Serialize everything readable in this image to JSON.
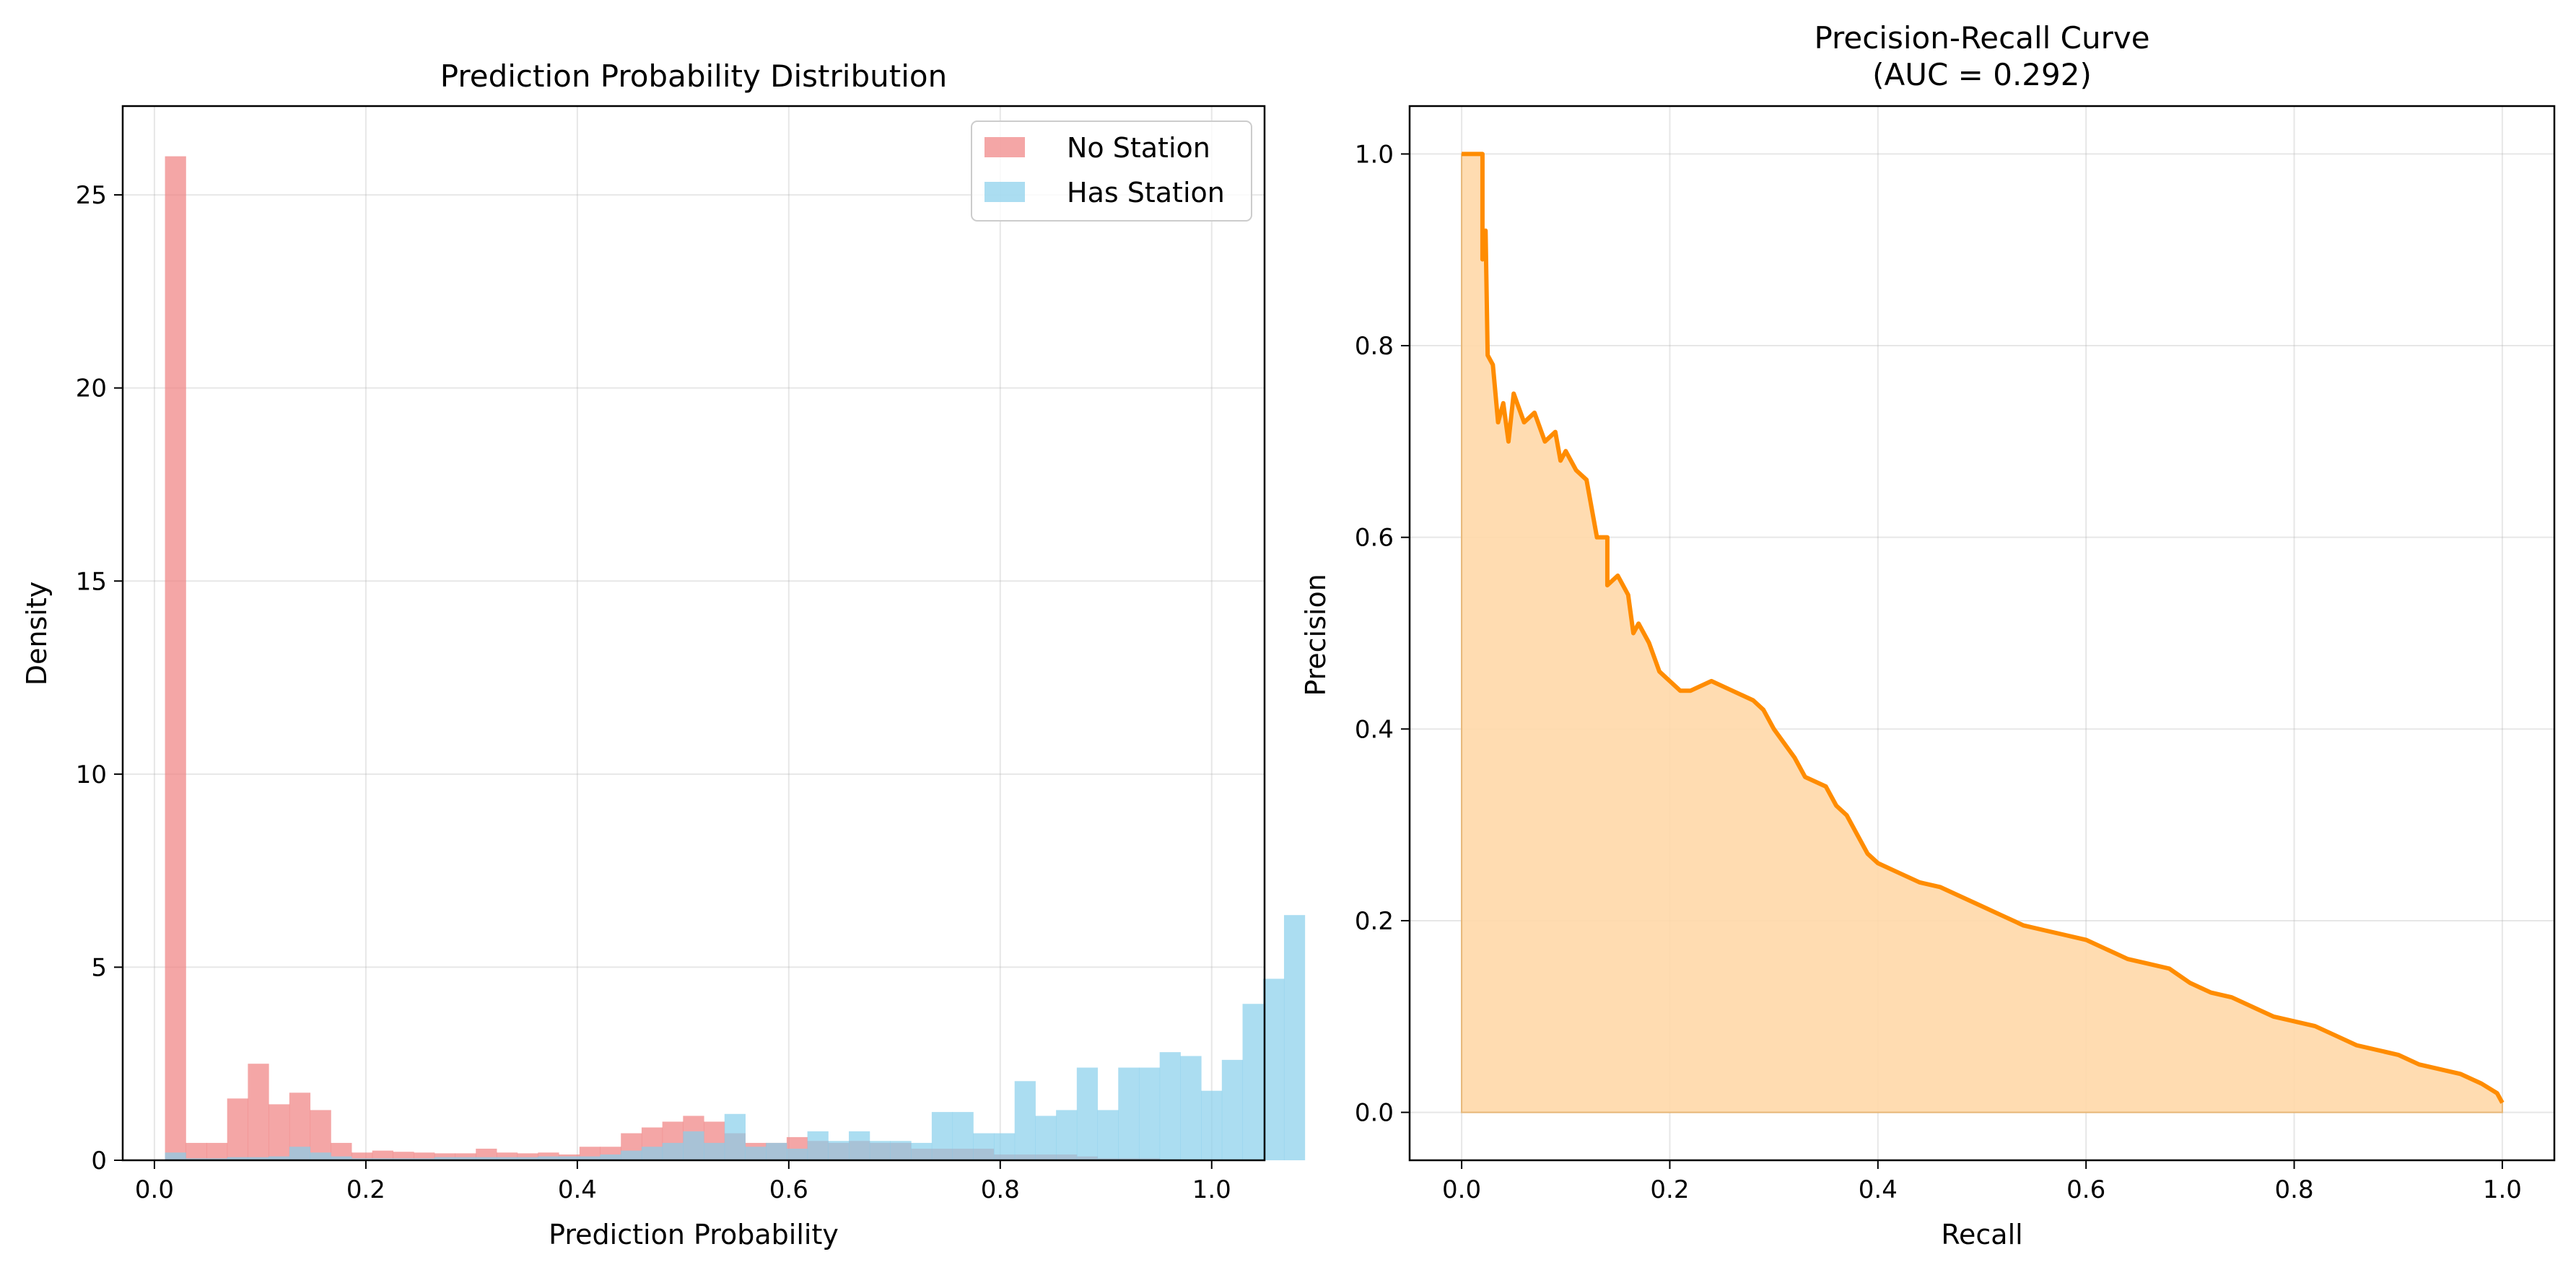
{
  "chart_data": [
    {
      "type": "histogram",
      "title": "Prediction Probability Distribution",
      "xlabel": "Prediction Probability",
      "ylabel": "Density",
      "xlim": [
        -0.03,
        1.05
      ],
      "ylim": [
        0,
        27.3
      ],
      "xticks": [
        0.0,
        0.2,
        0.4,
        0.6,
        0.8,
        1.0
      ],
      "xtick_labels": [
        "0.0",
        "0.2",
        "0.4",
        "0.6",
        "0.8",
        "1.0"
      ],
      "yticks": [
        0,
        5,
        10,
        15,
        20,
        25
      ],
      "ytick_labels": [
        "0",
        "5",
        "10",
        "15",
        "20",
        "25"
      ],
      "grid": true,
      "legend_position": "top-right",
      "series": [
        {
          "name": "No Station",
          "color": "#f08080",
          "bin_start": 0.01,
          "bin_width": 0.0196,
          "values": [
            26.0,
            0.45,
            0.45,
            1.6,
            2.5,
            1.45,
            1.75,
            1.3,
            0.45,
            0.2,
            0.25,
            0.22,
            0.2,
            0.18,
            0.18,
            0.3,
            0.2,
            0.18,
            0.2,
            0.15,
            0.35,
            0.35,
            0.7,
            0.85,
            1.0,
            1.15,
            1.0,
            0.7,
            0.45,
            0.45,
            0.6,
            0.5,
            0.45,
            0.5,
            0.45,
            0.45,
            0.3,
            0.3,
            0.3,
            0.3,
            0.15,
            0.15,
            0.15,
            0.15,
            0.1,
            0.05,
            0.05,
            0.05,
            0.02,
            0.01
          ]
        },
        {
          "name": "Has Station",
          "color": "#87ceeb",
          "bin_start": 0.01,
          "bin_width": 0.0196,
          "values": [
            0.2,
            0.05,
            0.05,
            0.08,
            0.08,
            0.1,
            0.35,
            0.2,
            0.1,
            0.05,
            0.05,
            0.05,
            0.05,
            0.08,
            0.08,
            0.08,
            0.08,
            0.08,
            0.1,
            0.1,
            0.1,
            0.15,
            0.25,
            0.35,
            0.45,
            0.75,
            0.45,
            1.2,
            0.35,
            0.45,
            0.3,
            0.75,
            0.5,
            0.75,
            0.5,
            0.5,
            0.45,
            1.25,
            1.25,
            0.7,
            0.7,
            2.05,
            1.15,
            1.3,
            2.4,
            1.3,
            2.4,
            2.4,
            2.8,
            2.7,
            1.8,
            2.6,
            4.05,
            4.7,
            6.35
          ]
        }
      ]
    },
    {
      "type": "area",
      "title": "Precision-Recall Curve",
      "subtitle": "(AUC = 0.292)",
      "xlabel": "Recall",
      "ylabel": "Precision",
      "xlim": [
        -0.05,
        1.05
      ],
      "ylim": [
        -0.05,
        1.05
      ],
      "xticks": [
        0.0,
        0.2,
        0.4,
        0.6,
        0.8,
        1.0
      ],
      "xtick_labels": [
        "0.0",
        "0.2",
        "0.4",
        "0.6",
        "0.8",
        "1.0"
      ],
      "yticks": [
        0.0,
        0.2,
        0.4,
        0.6,
        0.8,
        1.0
      ],
      "ytick_labels": [
        "0.0",
        "0.2",
        "0.4",
        "0.6",
        "0.8",
        "1.0"
      ],
      "grid": true,
      "line_color": "#ff8c00",
      "fill_color": "#ffd8a8",
      "points": [
        [
          0.0,
          1.0
        ],
        [
          0.02,
          1.0
        ],
        [
          0.02,
          0.89
        ],
        [
          0.023,
          0.92
        ],
        [
          0.025,
          0.79
        ],
        [
          0.03,
          0.78
        ],
        [
          0.035,
          0.72
        ],
        [
          0.04,
          0.74
        ],
        [
          0.045,
          0.7
        ],
        [
          0.05,
          0.75
        ],
        [
          0.06,
          0.72
        ],
        [
          0.07,
          0.73
        ],
        [
          0.08,
          0.7
        ],
        [
          0.09,
          0.71
        ],
        [
          0.095,
          0.68
        ],
        [
          0.1,
          0.69
        ],
        [
          0.11,
          0.67
        ],
        [
          0.12,
          0.66
        ],
        [
          0.13,
          0.6
        ],
        [
          0.14,
          0.6
        ],
        [
          0.14,
          0.55
        ],
        [
          0.15,
          0.56
        ],
        [
          0.16,
          0.54
        ],
        [
          0.165,
          0.5
        ],
        [
          0.17,
          0.51
        ],
        [
          0.18,
          0.49
        ],
        [
          0.19,
          0.46
        ],
        [
          0.2,
          0.45
        ],
        [
          0.21,
          0.44
        ],
        [
          0.22,
          0.44
        ],
        [
          0.24,
          0.45
        ],
        [
          0.26,
          0.44
        ],
        [
          0.28,
          0.43
        ],
        [
          0.29,
          0.42
        ],
        [
          0.3,
          0.4
        ],
        [
          0.32,
          0.37
        ],
        [
          0.33,
          0.35
        ],
        [
          0.35,
          0.34
        ],
        [
          0.36,
          0.32
        ],
        [
          0.37,
          0.31
        ],
        [
          0.38,
          0.29
        ],
        [
          0.39,
          0.27
        ],
        [
          0.4,
          0.26
        ],
        [
          0.42,
          0.25
        ],
        [
          0.44,
          0.24
        ],
        [
          0.46,
          0.235
        ],
        [
          0.48,
          0.225
        ],
        [
          0.5,
          0.215
        ],
        [
          0.52,
          0.205
        ],
        [
          0.54,
          0.195
        ],
        [
          0.56,
          0.19
        ],
        [
          0.58,
          0.185
        ],
        [
          0.6,
          0.18
        ],
        [
          0.62,
          0.17
        ],
        [
          0.64,
          0.16
        ],
        [
          0.66,
          0.155
        ],
        [
          0.68,
          0.15
        ],
        [
          0.7,
          0.135
        ],
        [
          0.72,
          0.125
        ],
        [
          0.74,
          0.12
        ],
        [
          0.76,
          0.11
        ],
        [
          0.78,
          0.1
        ],
        [
          0.8,
          0.095
        ],
        [
          0.82,
          0.09
        ],
        [
          0.84,
          0.08
        ],
        [
          0.86,
          0.07
        ],
        [
          0.88,
          0.065
        ],
        [
          0.9,
          0.06
        ],
        [
          0.92,
          0.05
        ],
        [
          0.94,
          0.045
        ],
        [
          0.96,
          0.04
        ],
        [
          0.98,
          0.03
        ],
        [
          0.995,
          0.02
        ],
        [
          1.0,
          0.01
        ]
      ]
    }
  ]
}
